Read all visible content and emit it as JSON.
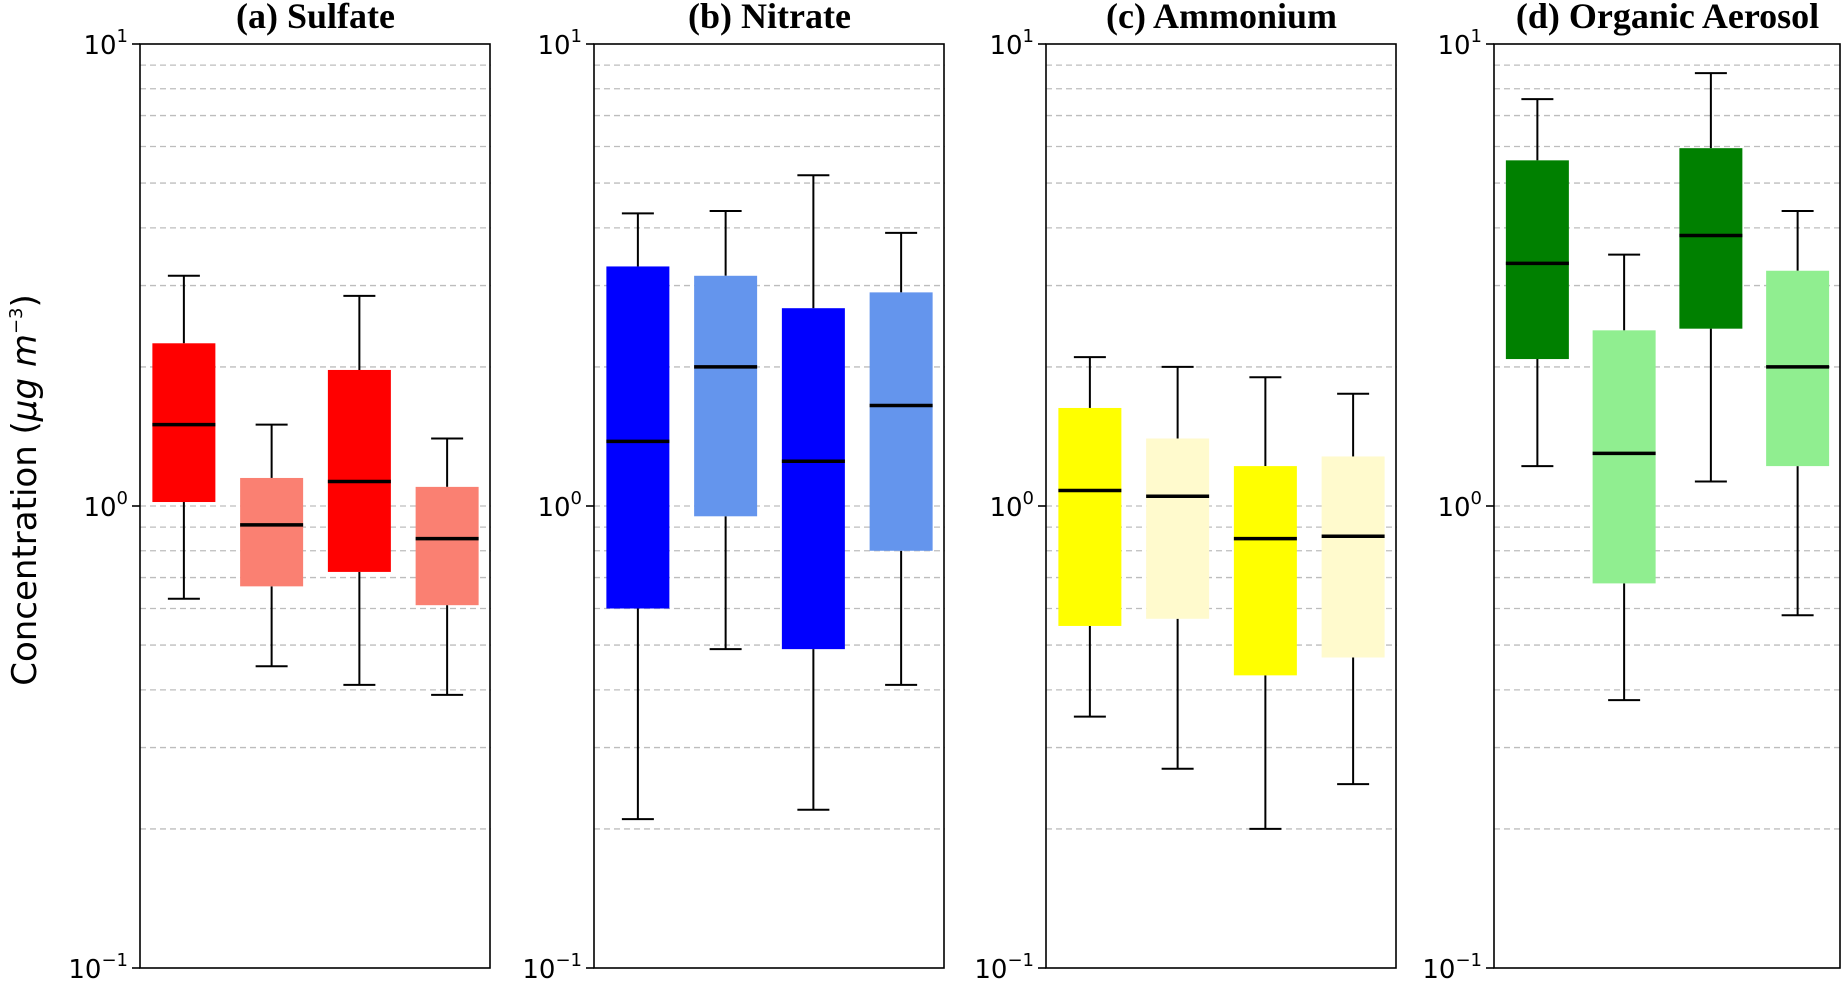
{
  "figure": {
    "ylabel_main": "Concentration (",
    "ylabel_unit": "μg m",
    "ylabel_exp": "−3",
    "ylabel_close": ")"
  },
  "chart_data": [
    {
      "type": "box",
      "title": "(a) Sulfate",
      "yscale": "log",
      "ylim": [
        0.1,
        10
      ],
      "grid": "y-dashed",
      "yticks": [
        {
          "base": "10",
          "exp": "−1"
        },
        {
          "base": "10",
          "exp": "0"
        },
        {
          "base": "10",
          "exp": "1"
        }
      ],
      "boxes": [
        {
          "color": "#ff0000",
          "min": 0.63,
          "q1": 1.02,
          "median": 1.5,
          "q3": 2.25,
          "max": 3.15
        },
        {
          "color": "#fa8072",
          "min": 0.45,
          "q1": 0.67,
          "median": 0.91,
          "q3": 1.15,
          "max": 1.5
        },
        {
          "color": "#ff0000",
          "min": 0.41,
          "q1": 0.72,
          "median": 1.13,
          "q3": 1.97,
          "max": 2.85
        },
        {
          "color": "#fa8072",
          "min": 0.39,
          "q1": 0.61,
          "median": 0.85,
          "q3": 1.1,
          "max": 1.4
        }
      ]
    },
    {
      "type": "box",
      "title": "(b) Nitrate",
      "yscale": "log",
      "ylim": [
        0.1,
        10
      ],
      "grid": "y-dashed",
      "yticks": [
        {
          "base": "10",
          "exp": "−1"
        },
        {
          "base": "10",
          "exp": "0"
        },
        {
          "base": "10",
          "exp": "1"
        }
      ],
      "boxes": [
        {
          "color": "#0000ff",
          "min": 0.21,
          "q1": 0.6,
          "median": 1.38,
          "q3": 3.3,
          "max": 4.3
        },
        {
          "color": "#6495ed",
          "min": 0.49,
          "q1": 0.95,
          "median": 2.0,
          "q3": 3.15,
          "max": 4.35
        },
        {
          "color": "#0000ff",
          "min": 0.22,
          "q1": 0.49,
          "median": 1.25,
          "q3": 2.68,
          "max": 5.2
        },
        {
          "color": "#6495ed",
          "min": 0.41,
          "q1": 0.8,
          "median": 1.65,
          "q3": 2.9,
          "max": 3.9
        }
      ]
    },
    {
      "type": "box",
      "title": "(c) Ammonium",
      "yscale": "log",
      "ylim": [
        0.1,
        10
      ],
      "grid": "y-dashed",
      "yticks": [
        {
          "base": "10",
          "exp": "−1"
        },
        {
          "base": "10",
          "exp": "0"
        },
        {
          "base": "10",
          "exp": "1"
        }
      ],
      "boxes": [
        {
          "color": "#ffff00",
          "min": 0.35,
          "q1": 0.55,
          "median": 1.08,
          "q3": 1.63,
          "max": 2.1
        },
        {
          "color": "#fffacd",
          "min": 0.27,
          "q1": 0.57,
          "median": 1.05,
          "q3": 1.4,
          "max": 2.0
        },
        {
          "color": "#ffff00",
          "min": 0.2,
          "q1": 0.43,
          "median": 0.85,
          "q3": 1.22,
          "max": 1.9
        },
        {
          "color": "#fffacd",
          "min": 0.25,
          "q1": 0.47,
          "median": 0.86,
          "q3": 1.28,
          "max": 1.75
        }
      ]
    },
    {
      "type": "box",
      "title": "(d) Organic Aerosol",
      "yscale": "log",
      "ylim": [
        0.1,
        10
      ],
      "grid": "y-dashed",
      "yticks": [
        {
          "base": "10",
          "exp": "−1"
        },
        {
          "base": "10",
          "exp": "0"
        },
        {
          "base": "10",
          "exp": "1"
        }
      ],
      "boxes": [
        {
          "color": "#008000",
          "min": 1.22,
          "q1": 2.08,
          "median": 3.35,
          "q3": 5.6,
          "max": 7.6
        },
        {
          "color": "#90ee90",
          "min": 0.38,
          "q1": 0.68,
          "median": 1.3,
          "q3": 2.4,
          "max": 3.5
        },
        {
          "color": "#008000",
          "min": 1.13,
          "q1": 2.42,
          "median": 3.85,
          "q3": 5.95,
          "max": 8.65
        },
        {
          "color": "#90ee90",
          "min": 0.58,
          "q1": 1.22,
          "median": 2.0,
          "q3": 3.23,
          "max": 4.35
        }
      ]
    }
  ]
}
